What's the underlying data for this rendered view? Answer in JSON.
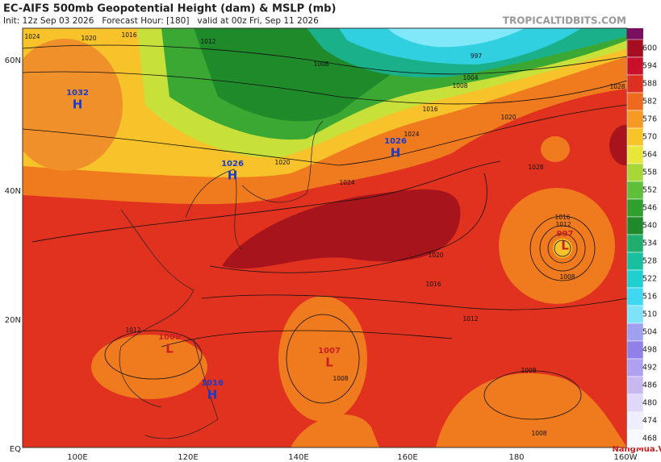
{
  "header": {
    "title": "EC-AIFS 500mb Geopotential Height (dam) & MSLP (mb)",
    "subtitle": "Init: 12z Sep 03 2026   Forecast Hour: [180]   valid at 00z Fri, Sep 11 2026",
    "source": "TROPICALTIDBITS.COM"
  },
  "map": {
    "lat_labels": [
      "60N",
      "40N",
      "20N",
      "EQ"
    ],
    "lon_labels": [
      "100E",
      "120E",
      "140E",
      "160E",
      "180",
      "160W"
    ],
    "centers": [
      {
        "letter": "H",
        "value": 1032
      },
      {
        "letter": "H",
        "value": 1026
      },
      {
        "letter": "H",
        "value": 1026
      },
      {
        "letter": "L",
        "value": 1009
      },
      {
        "letter": "L",
        "value": 1007
      },
      {
        "letter": "H",
        "value": 1016
      },
      {
        "letter": "L",
        "value": 997
      }
    ],
    "isobar_labels": [
      1020,
      1016,
      1012,
      1008,
      1004,
      997,
      1008,
      1016,
      1020,
      1024,
      1028,
      1024,
      1028,
      1020,
      1016,
      1012,
      1016,
      1012,
      1008,
      1008,
      1008,
      1008,
      1012,
      1024,
      1020
    ]
  },
  "colorbar": {
    "levels": [
      600,
      594,
      588,
      582,
      576,
      570,
      564,
      558,
      552,
      546,
      540,
      534,
      528,
      522,
      516,
      510,
      504,
      498,
      492,
      486,
      480,
      474,
      468
    ]
  },
  "watermark": "NangMua.VN"
}
